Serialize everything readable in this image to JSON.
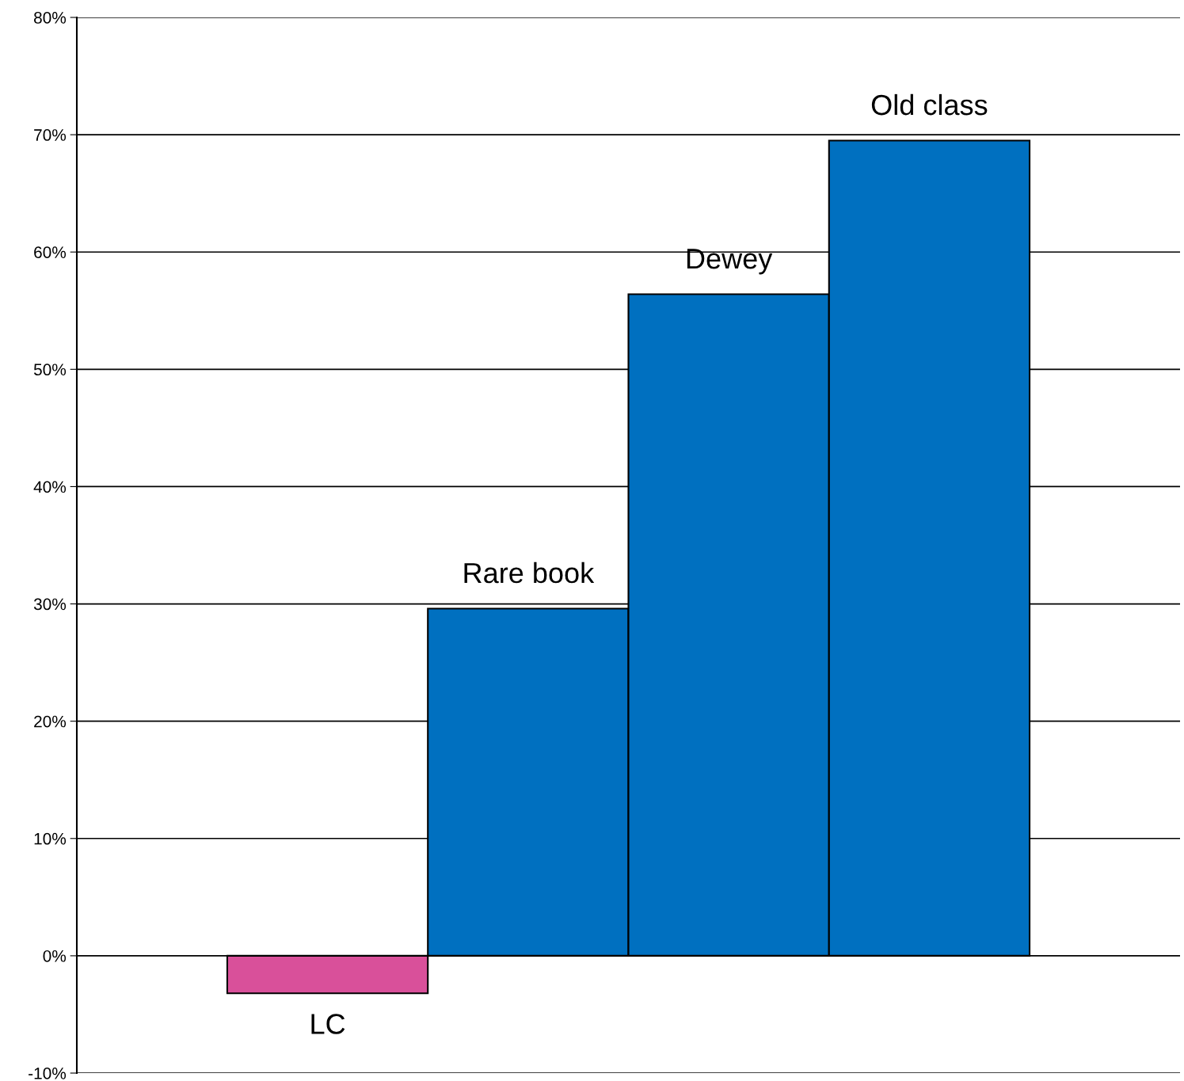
{
  "chart_data": {
    "type": "bar",
    "categories": [
      "LC",
      "Rare book",
      "Dewey",
      "Old class"
    ],
    "values": [
      -3.2,
      29.6,
      56.4,
      69.5
    ],
    "colors": [
      "#d9509a",
      "#0070c0",
      "#0070c0",
      "#0070c0"
    ],
    "ylim": [
      -10,
      80
    ],
    "yticks": [
      {
        "value": -10,
        "label": "-10%"
      },
      {
        "value": 0,
        "label": "0%"
      },
      {
        "value": 10,
        "label": "10%"
      },
      {
        "value": 20,
        "label": "20%"
      },
      {
        "value": 30,
        "label": "30%"
      },
      {
        "value": 40,
        "label": "40%"
      },
      {
        "value": 50,
        "label": "50%"
      },
      {
        "value": 60,
        "label": "60%"
      },
      {
        "value": 70,
        "label": "70%"
      },
      {
        "value": 80,
        "label": "80%"
      }
    ],
    "grid": "y",
    "tick_labels": "y"
  }
}
